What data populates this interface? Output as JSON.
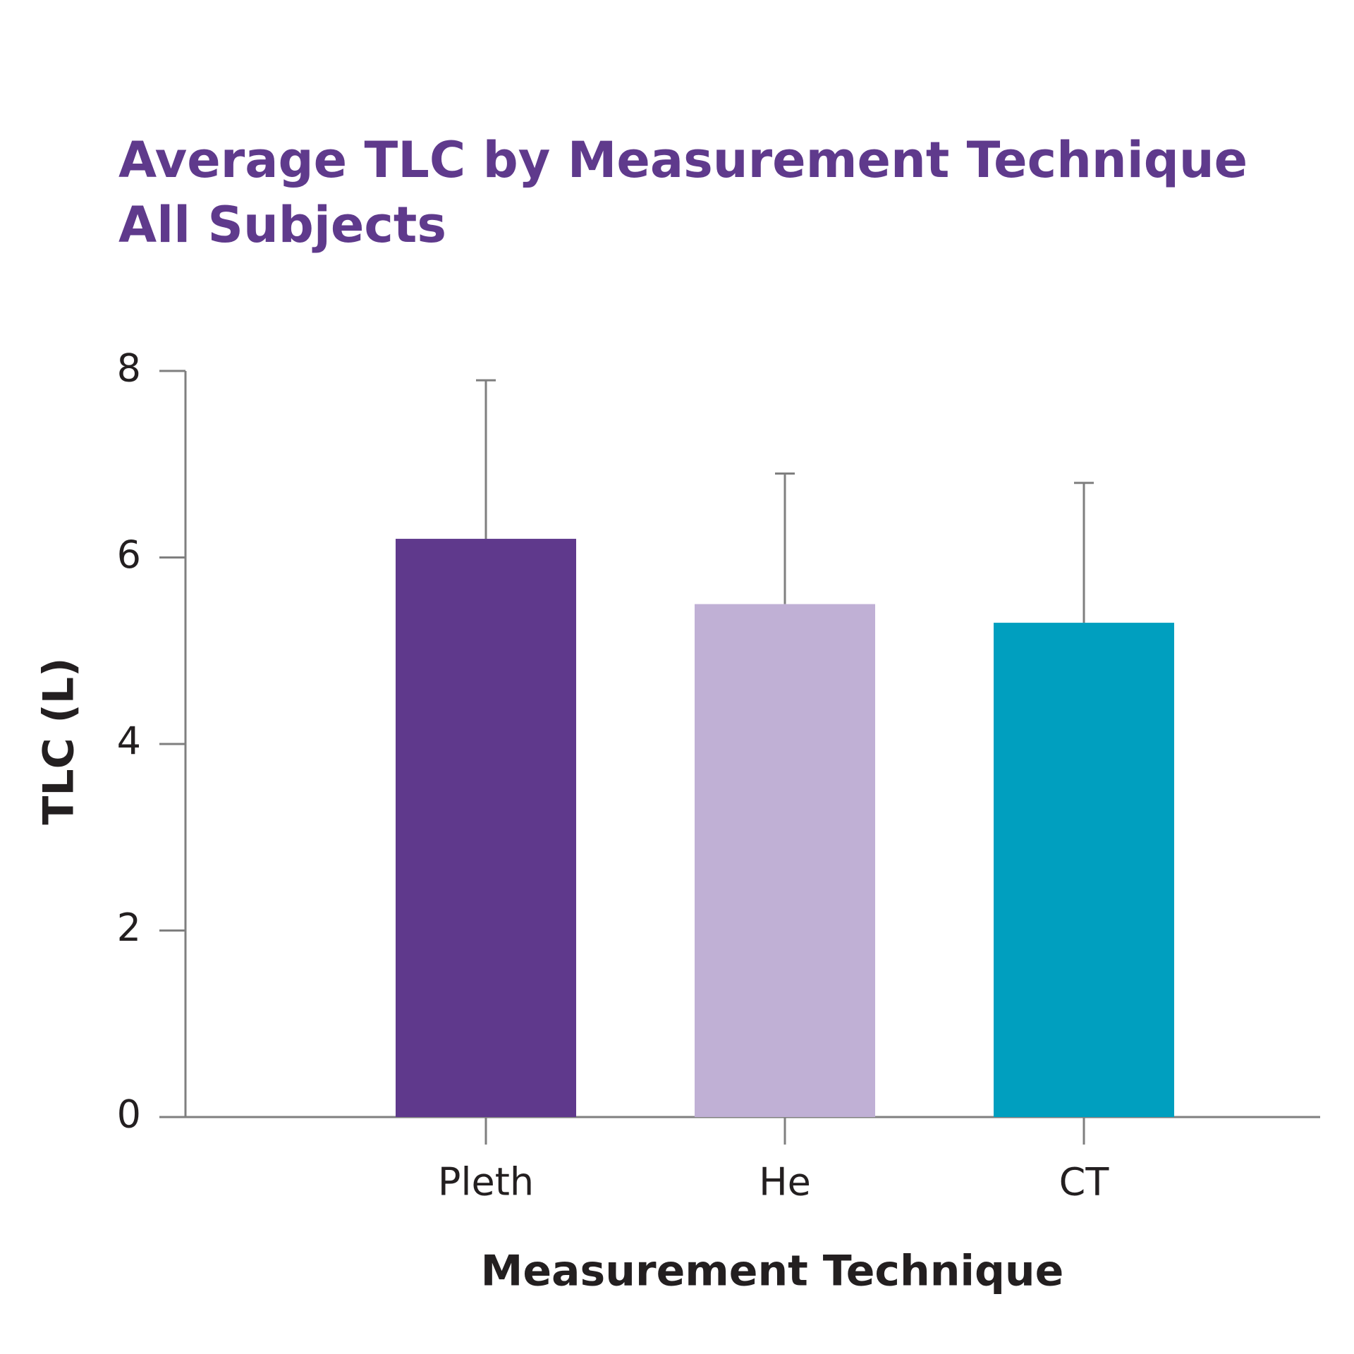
{
  "chart_data": {
    "type": "bar",
    "title": "Average TLC by Measurement Technique",
    "subtitle": "All Subjects",
    "x_label": "Measurement Technique",
    "y_label": "TLC (L)",
    "categories": [
      "Pleth",
      "He",
      "CT"
    ],
    "values": [
      6.2,
      5.5,
      5.3
    ],
    "errors": [
      1.7,
      1.4,
      1.5
    ],
    "colors": [
      "#5f398c",
      "#c0b0d5",
      "#009fbf"
    ],
    "ylim": [
      0,
      8
    ],
    "yticks": [
      0,
      2,
      4,
      6,
      8
    ],
    "grid": false
  }
}
